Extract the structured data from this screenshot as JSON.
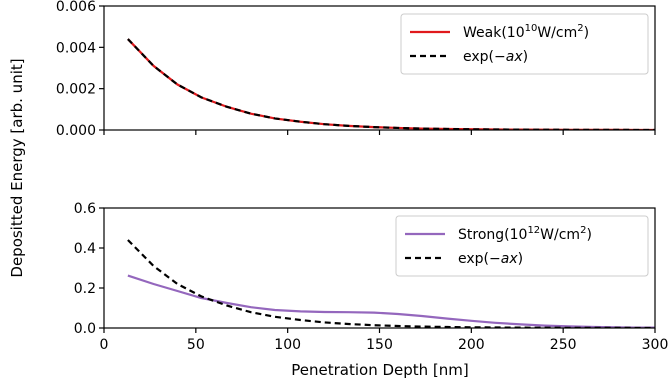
{
  "figure": {
    "ylabel": "Depositted Energy [arb. unit]",
    "xlabel": "Penetration Depth [nm]"
  },
  "chart_data": [
    {
      "type": "line",
      "panel": "top",
      "xlim": [
        0,
        300
      ],
      "ylim": [
        0,
        0.006
      ],
      "xticks": [
        0,
        50,
        100,
        150,
        200,
        250,
        300
      ],
      "xtick_labels_shown": false,
      "yticks": [
        0.0,
        0.002,
        0.004,
        0.006
      ],
      "ytick_labels": [
        "0.000",
        "0.002",
        "0.004",
        "0.006"
      ],
      "legend_position": "top-right",
      "series": [
        {
          "name_parts": [
            "Weak(10",
            "10",
            "W/cm",
            "2",
            ")"
          ],
          "color": "#e0191c",
          "style": "solid",
          "x": [
            13,
            27,
            40,
            53,
            67,
            80,
            93,
            107,
            120,
            133,
            147,
            160,
            173,
            187,
            200,
            213,
            227,
            240,
            253,
            267,
            280,
            293,
            300
          ],
          "y": [
            0.0044,
            0.0031,
            0.0022,
            0.00158,
            0.00112,
            0.00079,
            0.00056,
            0.0004,
            0.00028,
            0.0002,
            0.00014,
            0.0001,
            7e-05,
            5e-05,
            3.5e-05,
            2.5e-05,
            1.8e-05,
            1.3e-05,
            1e-05,
            7e-06,
            5e-06,
            4e-06,
            3e-06
          ]
        },
        {
          "name_parts": [
            "exp(−",
            "ax",
            ")"
          ],
          "color": "#000000",
          "style": "dashed",
          "x": [
            13,
            27,
            40,
            53,
            67,
            80,
            93,
            107,
            120,
            133,
            147,
            160,
            173,
            187,
            200,
            213,
            227,
            240,
            253,
            267,
            280,
            293,
            300
          ],
          "y": [
            0.0044,
            0.0031,
            0.0022,
            0.00158,
            0.00112,
            0.00079,
            0.00056,
            0.0004,
            0.00028,
            0.0002,
            0.00014,
            0.0001,
            7e-05,
            5e-05,
            3.5e-05,
            2.5e-05,
            1.8e-05,
            1.3e-05,
            1e-05,
            7e-06,
            5e-06,
            4e-06,
            3e-06
          ]
        }
      ]
    },
    {
      "type": "line",
      "panel": "bottom",
      "xlim": [
        0,
        300
      ],
      "ylim": [
        0,
        0.6
      ],
      "xticks": [
        0,
        50,
        100,
        150,
        200,
        250,
        300
      ],
      "xtick_labels": [
        "0",
        "50",
        "100",
        "150",
        "200",
        "250",
        "300"
      ],
      "yticks": [
        0.0,
        0.2,
        0.4,
        0.6
      ],
      "ytick_labels": [
        "0.0",
        "0.2",
        "0.4",
        "0.6"
      ],
      "legend_position": "top-right",
      "series": [
        {
          "name_parts": [
            "Strong(10",
            "12",
            "W/cm",
            "2",
            ")"
          ],
          "color": "#9467bd",
          "style": "solid",
          "x": [
            13,
            27,
            40,
            53,
            67,
            80,
            93,
            107,
            120,
            133,
            147,
            160,
            173,
            187,
            200,
            213,
            227,
            240,
            253,
            267,
            280,
            293,
            300
          ],
          "y": [
            0.262,
            0.22,
            0.185,
            0.15,
            0.125,
            0.104,
            0.09,
            0.083,
            0.08,
            0.079,
            0.077,
            0.07,
            0.06,
            0.047,
            0.036,
            0.026,
            0.018,
            0.012,
            0.008,
            0.005,
            0.003,
            0.002,
            0.002
          ]
        },
        {
          "name_parts": [
            "exp(−",
            "ax",
            ")"
          ],
          "color": "#000000",
          "style": "dashed",
          "x": [
            13,
            27,
            40,
            53,
            67,
            80,
            93,
            107,
            120,
            133,
            147,
            160,
            173,
            187,
            200,
            213,
            227,
            240,
            253,
            267,
            280,
            293,
            300
          ],
          "y": [
            0.44,
            0.31,
            0.22,
            0.158,
            0.112,
            0.079,
            0.056,
            0.04,
            0.028,
            0.02,
            0.014,
            0.01,
            0.007,
            0.005,
            0.0035,
            0.0025,
            0.0018,
            0.0013,
            0.001,
            0.0007,
            0.0005,
            0.0004,
            0.0003
          ]
        }
      ]
    }
  ]
}
